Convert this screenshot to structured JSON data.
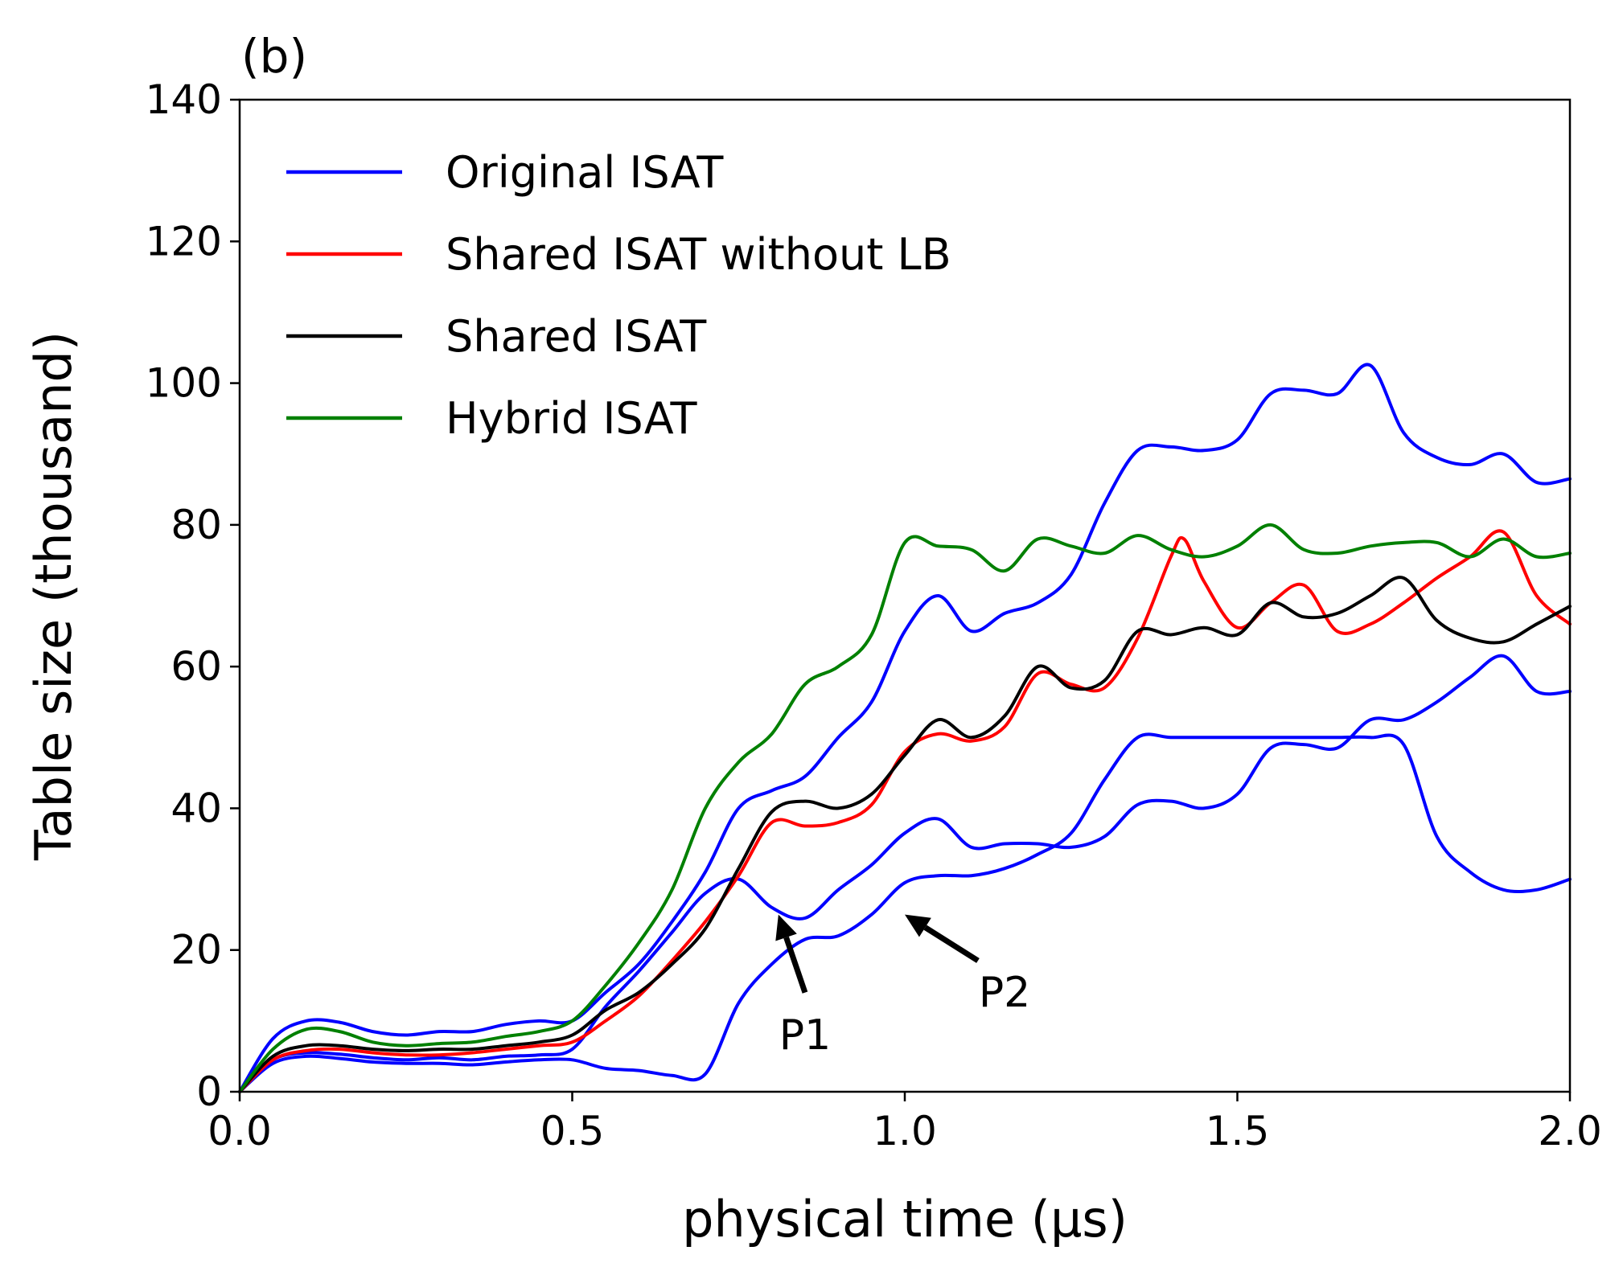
{
  "chart_data": {
    "type": "line",
    "panel_label": "(b)",
    "title": "",
    "xlabel": "physical time (μs)",
    "ylabel": "Table size (thousand)",
    "xlim": [
      0.0,
      2.0
    ],
    "ylim": [
      0,
      140
    ],
    "xticks": [
      0.0,
      0.5,
      1.0,
      1.5,
      2.0
    ],
    "xtick_labels": [
      "0.0",
      "0.5",
      "1.0",
      "1.5",
      "2.0"
    ],
    "yticks": [
      0,
      20,
      40,
      60,
      80,
      100,
      120,
      140
    ],
    "ytick_labels": [
      "0",
      "20",
      "40",
      "60",
      "80",
      "100",
      "120",
      "140"
    ],
    "grid": false,
    "legend_position": "top-left",
    "legend": [
      {
        "name": "Original ISAT",
        "color": "#0000ff"
      },
      {
        "name": "Shared ISAT without LB",
        "color": "#ff0000"
      },
      {
        "name": "Shared ISAT",
        "color": "#000000"
      },
      {
        "name": "Hybrid ISAT",
        "color": "#008000"
      }
    ],
    "series": [
      {
        "legend": "Original ISAT",
        "color": "#0000ff",
        "x": [
          0,
          0.05,
          0.1,
          0.15,
          0.2,
          0.25,
          0.3,
          0.35,
          0.4,
          0.45,
          0.5,
          0.55,
          0.6,
          0.65,
          0.7,
          0.75,
          0.8,
          0.85,
          0.9,
          0.95,
          1.0,
          1.05,
          1.1,
          1.15,
          1.2,
          1.25,
          1.3,
          1.35,
          1.4,
          1.45,
          1.5,
          1.55,
          1.6,
          1.65,
          1.7,
          1.75,
          1.8,
          1.85,
          1.9,
          1.95,
          2.0
        ],
        "y": [
          0,
          7.5,
          10,
          9.8,
          8.5,
          8,
          8.5,
          8.5,
          9.5,
          10,
          10,
          14,
          18,
          24,
          31,
          40,
          42.5,
          44.5,
          50,
          55,
          65,
          70,
          65,
          67.5,
          69,
          73,
          83,
          90.5,
          91,
          90.5,
          92,
          98.5,
          99,
          98.5,
          102.5,
          93,
          89.5,
          88.5,
          90,
          86,
          86.5
        ]
      },
      {
        "legend": "Original ISAT",
        "color": "#0000ff",
        "x": [
          0,
          0.05,
          0.1,
          0.15,
          0.2,
          0.25,
          0.3,
          0.35,
          0.4,
          0.45,
          0.5,
          0.55,
          0.6,
          0.65,
          0.7,
          0.75,
          0.8,
          0.85,
          0.9,
          0.95,
          1.0,
          1.05,
          1.1,
          1.15,
          1.2,
          1.25,
          1.3,
          1.35,
          1.4,
          1.45,
          1.5,
          1.55,
          1.6,
          1.65,
          1.7,
          1.75,
          1.8,
          1.85,
          1.9,
          1.95,
          2.0
        ],
        "y": [
          0,
          4,
          5,
          4.7,
          4.2,
          4,
          4,
          3.8,
          4.2,
          4.5,
          4.5,
          3.3,
          3,
          2.3,
          2.5,
          12.5,
          18,
          21.5,
          22,
          25,
          29.5,
          30.5,
          30.5,
          31.5,
          33.5,
          36.5,
          44,
          50,
          50,
          50,
          50,
          50,
          50,
          50,
          50,
          49,
          36,
          31,
          28.5,
          28.5,
          30
        ]
      },
      {
        "legend": "Original ISAT",
        "color": "#0000ff",
        "x": [
          0,
          0.05,
          0.1,
          0.15,
          0.2,
          0.25,
          0.3,
          0.35,
          0.4,
          0.45,
          0.5,
          0.55,
          0.6,
          0.65,
          0.7,
          0.75,
          0.8,
          0.85,
          0.9,
          0.95,
          1.0,
          1.05,
          1.1,
          1.15,
          1.2,
          1.25,
          1.3,
          1.35,
          1.4,
          1.45,
          1.5,
          1.55,
          1.6,
          1.65,
          1.7,
          1.75,
          1.8,
          1.85,
          1.9,
          1.95,
          2.0
        ],
        "y": [
          0,
          4.5,
          5.5,
          5.3,
          4.8,
          4.5,
          4.8,
          4.5,
          5,
          5.2,
          6,
          12,
          17,
          22.5,
          28,
          30,
          26,
          24.5,
          28.5,
          32,
          36.5,
          38.5,
          34.5,
          35,
          35,
          34.5,
          36,
          40.5,
          41,
          40,
          42,
          48.5,
          49,
          48.5,
          52.5,
          52.5,
          55,
          58.5,
          61.5,
          56.5,
          56.5
        ]
      },
      {
        "legend": "Shared ISAT without LB",
        "color": "#ff0000",
        "x": [
          0,
          0.05,
          0.1,
          0.15,
          0.2,
          0.25,
          0.3,
          0.35,
          0.4,
          0.45,
          0.5,
          0.55,
          0.6,
          0.65,
          0.7,
          0.75,
          0.8,
          0.85,
          0.9,
          0.95,
          1.0,
          1.05,
          1.1,
          1.15,
          1.2,
          1.25,
          1.3,
          1.35,
          1.4,
          1.42,
          1.45,
          1.5,
          1.55,
          1.6,
          1.65,
          1.7,
          1.75,
          1.8,
          1.85,
          1.9,
          1.95,
          2.0
        ],
        "y": [
          0,
          4.5,
          5.8,
          6,
          5.5,
          5.2,
          5.2,
          5.5,
          6,
          6.5,
          7,
          10,
          13.5,
          18.5,
          24,
          30.5,
          38,
          37.5,
          38,
          40.5,
          48,
          50.5,
          49.5,
          51.5,
          59,
          57.5,
          57,
          64,
          75.5,
          78,
          72,
          65.5,
          69,
          71.5,
          65,
          66,
          69,
          72.5,
          75.5,
          79,
          70,
          66
        ]
      },
      {
        "legend": "Shared ISAT",
        "color": "#000000",
        "x": [
          0,
          0.05,
          0.1,
          0.15,
          0.2,
          0.25,
          0.3,
          0.35,
          0.4,
          0.45,
          0.5,
          0.55,
          0.6,
          0.65,
          0.7,
          0.75,
          0.8,
          0.85,
          0.9,
          0.95,
          1.0,
          1.05,
          1.1,
          1.15,
          1.2,
          1.25,
          1.3,
          1.35,
          1.4,
          1.45,
          1.5,
          1.55,
          1.6,
          1.65,
          1.7,
          1.75,
          1.8,
          1.85,
          1.9,
          1.95,
          2.0
        ],
        "y": [
          0,
          5,
          6.5,
          6.5,
          6,
          5.8,
          6,
          6,
          6.5,
          7,
          8,
          11.5,
          14,
          18,
          23,
          31.5,
          39.5,
          41,
          40,
          42,
          47.5,
          52.5,
          50,
          53,
          60,
          57,
          58,
          65,
          64.5,
          65.5,
          64.5,
          69,
          67,
          67.5,
          70,
          72.5,
          66.5,
          64,
          63.5,
          66,
          68.5
        ]
      },
      {
        "legend": "Hybrid ISAT",
        "color": "#008000",
        "x": [
          0,
          0.05,
          0.1,
          0.15,
          0.2,
          0.25,
          0.3,
          0.35,
          0.4,
          0.45,
          0.5,
          0.55,
          0.6,
          0.65,
          0.7,
          0.75,
          0.8,
          0.85,
          0.9,
          0.95,
          1.0,
          1.05,
          1.1,
          1.15,
          1.2,
          1.25,
          1.3,
          1.35,
          1.4,
          1.45,
          1.5,
          1.55,
          1.6,
          1.65,
          1.7,
          1.75,
          1.8,
          1.85,
          1.9,
          1.95,
          2.0
        ],
        "y": [
          0,
          6,
          8.8,
          8.5,
          7,
          6.5,
          6.8,
          7,
          7.8,
          8.5,
          10,
          15,
          21,
          28.5,
          40,
          46.5,
          50.5,
          57.5,
          60,
          64.5,
          77.5,
          77,
          76.5,
          73.5,
          78,
          77,
          76,
          78.5,
          76.5,
          75.5,
          77,
          80,
          76.5,
          76,
          77,
          77.5,
          77.5,
          75.5,
          78,
          75.5,
          76
        ]
      }
    ],
    "annotations": [
      {
        "text": "P1",
        "x": 0.85,
        "y": 6,
        "arrow_from": [
          0.85,
          14
        ],
        "arrow_to": [
          0.81,
          25
        ]
      },
      {
        "text": "P2",
        "x": 1.15,
        "y": 12,
        "arrow_from": [
          1.11,
          18.5
        ],
        "arrow_to": [
          1.0,
          25
        ]
      }
    ]
  }
}
